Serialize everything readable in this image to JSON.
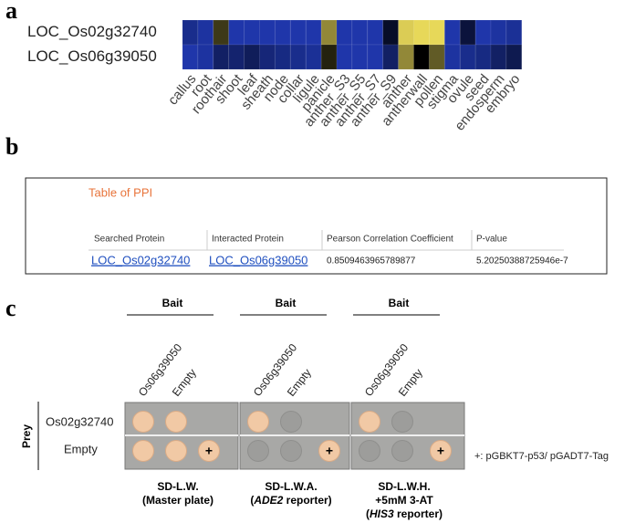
{
  "panel_labels": [
    "a",
    "b",
    "c"
  ],
  "heatmap": {
    "type": "heatmap",
    "rows": [
      "LOC_Os02g32740",
      "LOC_Os06g39050"
    ],
    "columns": [
      "callus",
      "root",
      "roothair",
      "shoot",
      "leaf",
      "sheath",
      "node",
      "collar",
      "ligule",
      "panicle",
      "anther_S3",
      "anther_S5",
      "anther_S7",
      "anther_S9",
      "anther",
      "antherwall",
      "pollen",
      "stigma",
      "ovule",
      "seed",
      "endosperm",
      "embryo"
    ],
    "values": [
      [
        -0.7,
        -0.8,
        0.25,
        -0.85,
        -0.85,
        -0.85,
        -0.85,
        -0.85,
        -0.85,
        0.6,
        -0.85,
        -0.85,
        -0.85,
        -0.2,
        0.9,
        0.95,
        0.95,
        -0.85,
        -0.3,
        -0.85,
        -0.8,
        -0.75
      ],
      [
        -0.85,
        -0.8,
        -0.5,
        -0.55,
        -0.45,
        -0.6,
        -0.65,
        -0.7,
        -0.75,
        0.15,
        -0.85,
        -0.85,
        -0.85,
        -0.5,
        0.6,
        0.0,
        0.4,
        -0.8,
        -0.7,
        -0.65,
        -0.5,
        -0.4
      ]
    ],
    "colormap": [
      "#2440c8",
      "#000000",
      "#f3e35e"
    ],
    "zlim": [
      -1,
      1
    ]
  },
  "table": {
    "title": "Table of PPI",
    "header": [
      "Searched Protein",
      "Interacted Protein",
      "Pearson Correlation Coefficient",
      "P-value"
    ],
    "rows": [
      [
        "LOC_Os02g32740",
        "LOC_Os06g39050",
        "0.8509463965789877",
        "5.20250388725946e-7"
      ]
    ]
  },
  "assay": {
    "prey_title": "Prey",
    "prey": [
      "Os02g32740",
      "Empty"
    ],
    "plates": [
      {
        "bait": "Bait",
        "columns": [
          "Os06g39050",
          "Empty"
        ],
        "positive": "+",
        "caption": [
          [
            "SD-L.W."
          ],
          [
            "(Master plate)"
          ]
        ]
      },
      {
        "bait": "Bait",
        "columns": [
          "Os06g39050",
          "Empty"
        ],
        "positive": "+",
        "caption": [
          [
            "SD-L.W.A."
          ],
          [
            "(",
            "ADE2",
            " reporter)"
          ]
        ]
      },
      {
        "bait": "Bait",
        "columns": [
          "Os06g39050",
          "Empty"
        ],
        "positive": "+",
        "caption": [
          [
            "SD-L.W.H."
          ],
          [
            "+5mM 3-AT"
          ],
          [
            "(",
            "HIS3",
            " reporter)"
          ]
        ]
      }
    ],
    "note": "+: pGBKT7-p53/ pGADT7-Tag"
  }
}
